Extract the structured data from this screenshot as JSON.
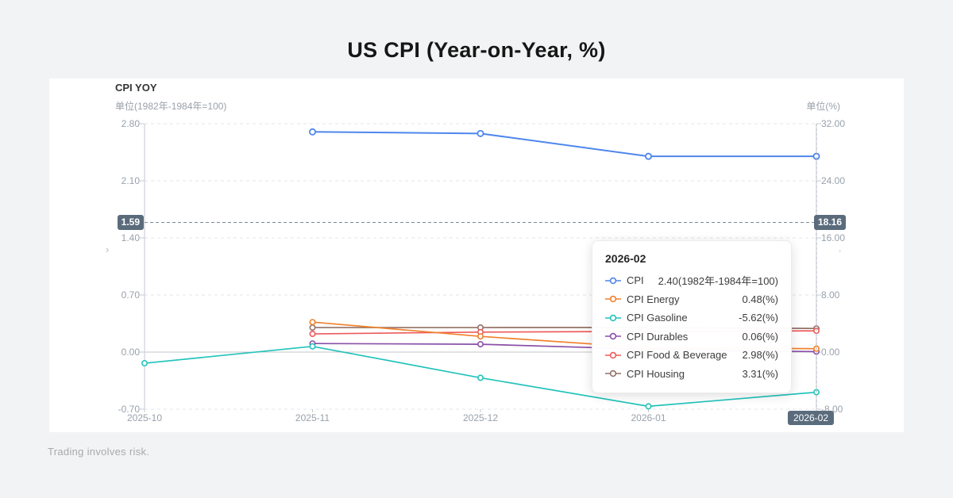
{
  "page": {
    "title": "US CPI (Year-on-Year, %)",
    "footer": "Trading involves risk."
  },
  "panel": {
    "title": "CPI YOY",
    "left_unit": "单位(1982年-1984年=100)",
    "right_unit": "单位(%)"
  },
  "pointer": {
    "left_value": "1.59",
    "right_value": "18.16",
    "x_value": "2026-02",
    "badge_color": "#5a6b7c"
  },
  "pan_arrows": {
    "left": "›",
    "right": "›"
  },
  "tooltip": {
    "title": "2026-02",
    "rows": [
      {
        "name": "CPI",
        "value": "2.40(1982年-1984年=100)",
        "color": "#4f86ec"
      },
      {
        "name": "CPI Energy",
        "value": "0.48(%)",
        "color": "#f0812c"
      },
      {
        "name": "CPI Gasoline",
        "value": "-5.62(%)",
        "color": "#23c3bb"
      },
      {
        "name": "CPI Durables",
        "value": "0.06(%)",
        "color": "#8a4fa8"
      },
      {
        "name": "CPI Food & Beverage",
        "value": "2.98(%)",
        "color": "#ee5a5a"
      },
      {
        "name": "CPI Housing",
        "value": "3.31(%)",
        "color": "#927065"
      }
    ]
  },
  "chart_data": {
    "type": "line",
    "title": "CPI YOY",
    "categories": [
      "2025-10",
      "2025-11",
      "2025-12",
      "2026-01",
      "2026-02"
    ],
    "series": [
      {
        "name": "CPI",
        "color": "#4f86ec",
        "axis": "left",
        "values": [
          null,
          2.7,
          2.68,
          2.4,
          2.4
        ]
      },
      {
        "name": "CPI Energy",
        "color": "#f0812c",
        "axis": "right",
        "values": [
          null,
          4.2,
          2.2,
          0.6,
          0.48
        ]
      },
      {
        "name": "CPI Gasoline",
        "color": "#23c3bb",
        "axis": "right",
        "values": [
          -1.56,
          0.8,
          -3.6,
          -7.6,
          -5.62
        ]
      },
      {
        "name": "CPI Durables",
        "color": "#8a4fa8",
        "axis": "right",
        "values": [
          null,
          1.2,
          1.1,
          0.4,
          0.06
        ]
      },
      {
        "name": "CPI Food & Beverage",
        "color": "#ee5a5a",
        "axis": "right",
        "values": [
          null,
          2.55,
          2.8,
          2.9,
          2.98
        ]
      },
      {
        "name": "CPI Housing",
        "color": "#927065",
        "axis": "right",
        "values": [
          null,
          3.44,
          3.44,
          3.45,
          3.31
        ]
      }
    ],
    "axes": {
      "left": {
        "unit": "单位(1982年-1984年=100)",
        "min": -0.7,
        "max": 2.8,
        "ticks": [
          "2.80",
          "2.10",
          "1.40",
          "0.70",
          "0.00",
          "-0.70"
        ]
      },
      "right": {
        "unit": "单位(%)",
        "min": -8,
        "max": 32,
        "ticks": [
          "32.00",
          "24.00",
          "16.00",
          "8.00",
          "0.00",
          "-8.00"
        ]
      }
    },
    "crosshair": {
      "y_left": 1.59,
      "y_left_label": "1.59",
      "y_right_label": "18.16",
      "x_category": "2026-02"
    },
    "grid": true,
    "legend_position": "none"
  },
  "colors": {
    "page_bg": "#f2f3f4",
    "card_bg": "#ffffff",
    "grid_line": "#e3e5e8",
    "zero_line": "#c0c4c9",
    "axis_line": "#c6cad0",
    "tick_text": "#98a1ab",
    "crosshair": "#7b8894"
  }
}
